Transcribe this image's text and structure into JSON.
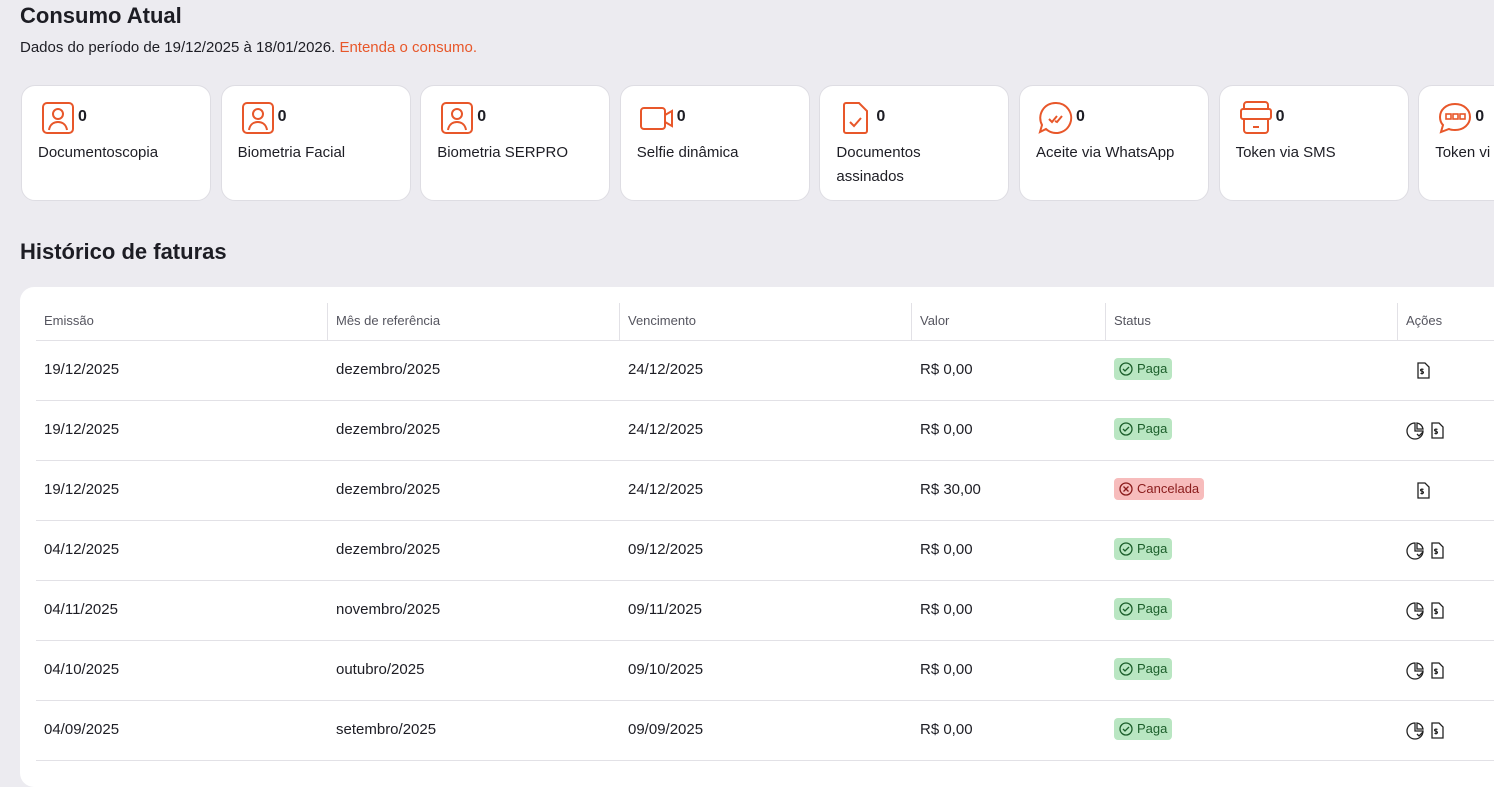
{
  "header": {
    "title": "Consumo Atual",
    "subtitle": "Dados do período de 19/12/2025 à 18/01/2026.",
    "link": "Entenda o consumo."
  },
  "cards": [
    {
      "label": "Documentoscopia",
      "value": 0
    },
    {
      "label": "Biometria Facial",
      "value": 0
    },
    {
      "label": "Biometria SERPRO",
      "value": 0
    },
    {
      "label": "Selfie dinâmica",
      "value": 0
    },
    {
      "label": "Documentos assinados",
      "value": 0
    },
    {
      "label": "Aceite via WhatsApp",
      "value": 0
    },
    {
      "label": "Token via SMS",
      "value": 0
    },
    {
      "label": "Token vi",
      "value": 0
    }
  ],
  "invoices": {
    "title": "Histórico de faturas",
    "columns": [
      "Emissão",
      "Mês de referência",
      "Vencimento",
      "Valor",
      "Status",
      "Ações"
    ],
    "rows": [
      [
        "19/12/2025",
        "dezembro/2025",
        "24/12/2025",
        "R$ 0,00",
        "Paga"
      ],
      [
        "19/12/2025",
        "dezembro/2025",
        "24/12/2025",
        "R$ 0,00",
        "Paga"
      ],
      [
        "19/12/2025",
        "dezembro/2025",
        "24/12/2025",
        "R$ 30,00",
        "Cancelada"
      ],
      [
        "04/12/2025",
        "dezembro/2025",
        "09/12/2025",
        "R$ 0,00",
        "Paga"
      ],
      [
        "04/11/2025",
        "novembro/2025",
        "09/11/2025",
        "R$ 0,00",
        "Paga"
      ],
      [
        "04/10/2025",
        "outubro/2025",
        "09/10/2025",
        "R$ 0,00",
        "Paga"
      ],
      [
        "04/09/2025",
        "setembro/2025",
        "09/09/2025",
        "R$ 0,00",
        "Paga"
      ]
    ]
  }
}
